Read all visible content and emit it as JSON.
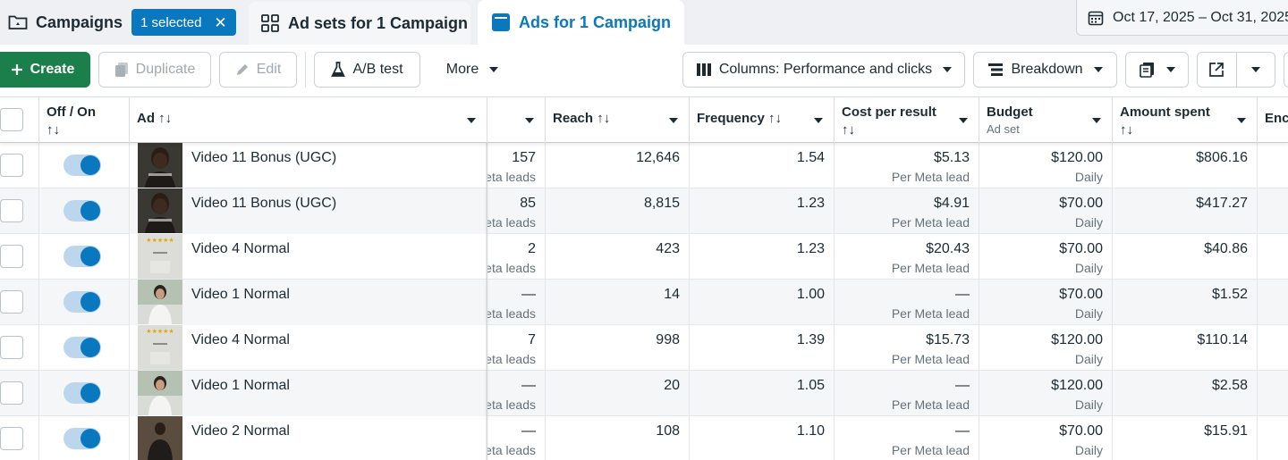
{
  "tabs": {
    "campaigns": {
      "label": "Campaigns",
      "selected_badge": "1 selected",
      "clear_icon": "close-icon"
    },
    "adsets": {
      "label": "Ad sets for 1 Campaign"
    },
    "ads": {
      "label": "Ads for 1 Campaign"
    }
  },
  "date_range": "Oct 17, 2025 – Oct 31, 2025",
  "toolbar": {
    "create": "Create",
    "duplicate": "Duplicate",
    "edit": "Edit",
    "ab_test": "A/B test",
    "more": "More",
    "columns": "Columns: Performance and clicks",
    "breakdown": "Breakdown"
  },
  "columns": {
    "offon": "Off / On",
    "ad": "Ad",
    "reach": "Reach",
    "frequency": "Frequency",
    "cost_per_result": "Cost per result",
    "budget": "Budget",
    "budget_sub": "Ad set",
    "amount_spent": "Amount spent",
    "ends": "Enc",
    "sort_arrows": "↑↓"
  },
  "rows": [
    {
      "ad": "Video 11 Bonus (UGC)",
      "results": "157",
      "results_sub": "eta leads",
      "reach": "12,646",
      "frequency": "1.54",
      "cpr": "$5.13",
      "cpr_sub": "Per Meta lead",
      "budget": "$120.00",
      "budget_sub": "Daily",
      "spent": "$806.16",
      "thumb": "ugc"
    },
    {
      "ad": "Video 11 Bonus (UGC)",
      "results": "85",
      "results_sub": "eta leads",
      "reach": "8,815",
      "frequency": "1.23",
      "cpr": "$4.91",
      "cpr_sub": "Per Meta lead",
      "budget": "$70.00",
      "budget_sub": "Daily",
      "spent": "$417.27",
      "thumb": "ugc"
    },
    {
      "ad": "Video 4 Normal",
      "results": "2",
      "results_sub": "eta leads",
      "reach": "423",
      "frequency": "1.23",
      "cpr": "$20.43",
      "cpr_sub": "Per Meta lead",
      "budget": "$70.00",
      "budget_sub": "Daily",
      "spent": "$40.86",
      "thumb": "normal4"
    },
    {
      "ad": "Video 1 Normal",
      "results": "—",
      "results_sub": "eta leads",
      "reach": "14",
      "frequency": "1.00",
      "cpr": "—",
      "cpr_sub": "Per Meta lead",
      "budget": "$70.00",
      "budget_sub": "Daily",
      "spent": "$1.52",
      "thumb": "normal1"
    },
    {
      "ad": "Video 4 Normal",
      "results": "7",
      "results_sub": "eta leads",
      "reach": "998",
      "frequency": "1.39",
      "cpr": "$15.73",
      "cpr_sub": "Per Meta lead",
      "budget": "$120.00",
      "budget_sub": "Daily",
      "spent": "$110.14",
      "thumb": "normal4"
    },
    {
      "ad": "Video 1 Normal",
      "results": "—",
      "results_sub": "eta leads",
      "reach": "20",
      "frequency": "1.05",
      "cpr": "—",
      "cpr_sub": "Per Meta lead",
      "budget": "$120.00",
      "budget_sub": "Daily",
      "spent": "$2.58",
      "thumb": "normal1"
    },
    {
      "ad": "Video 2 Normal",
      "results": "—",
      "results_sub": "eta leads",
      "reach": "108",
      "frequency": "1.10",
      "cpr": "—",
      "cpr_sub": "Per Meta lead",
      "budget": "$70.00",
      "budget_sub": "Daily",
      "spent": "$15.91",
      "thumb": "normal2"
    }
  ],
  "colors": {
    "accent": "#0a78be",
    "create_green": "#1a7f4b",
    "toggle_track": "#bcd6ee"
  }
}
